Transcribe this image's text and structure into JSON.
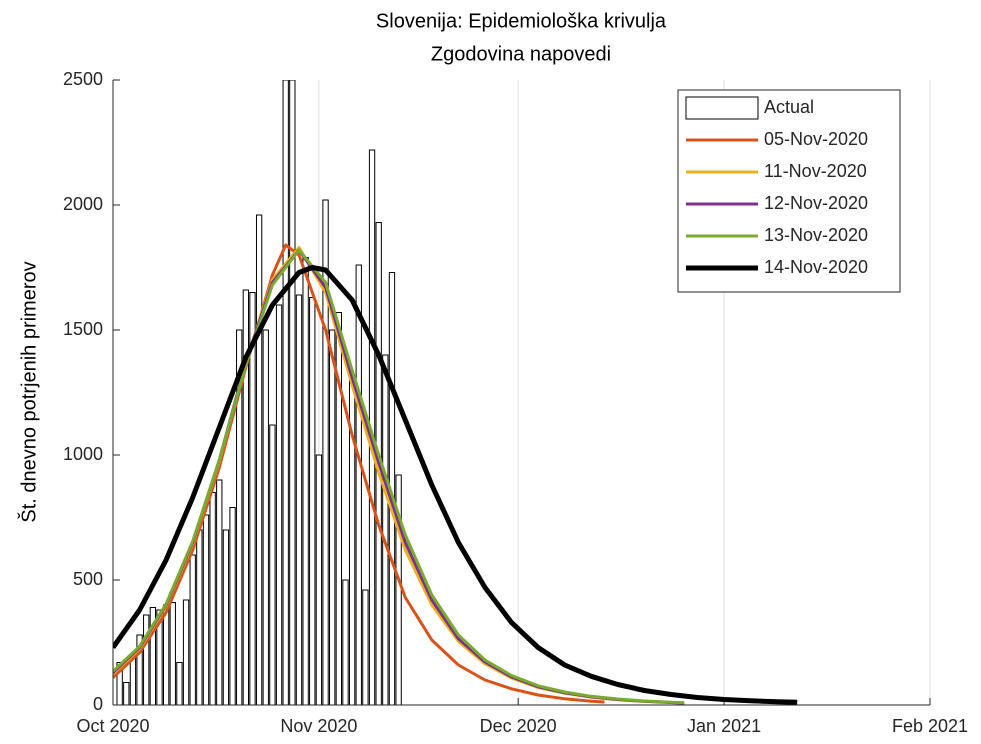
{
  "chart_data": {
    "type": "bar",
    "title": "Slovenija: Epidemiološka krivulja",
    "subtitle": "Zgodovina napovedi",
    "y_label": "Št. dnevno potrjenih primerov",
    "xlim": [
      0,
      123
    ],
    "xticks": [
      {
        "value": 0,
        "label": "Oct 2020"
      },
      {
        "value": 31,
        "label": "Nov 2020"
      },
      {
        "value": 61,
        "label": "Dec 2020"
      },
      {
        "value": 92,
        "label": "Jan 2021"
      },
      {
        "value": 123,
        "label": "Feb 2021"
      }
    ],
    "ylim": [
      0,
      2500
    ],
    "yticks": [
      0,
      500,
      1000,
      1500,
      2000,
      2500
    ],
    "xgrid": true,
    "legend": "northeast",
    "series": [
      {
        "name": "Actual",
        "type": "bar",
        "color": "#ffffff",
        "x": [
          1,
          2,
          3,
          4,
          5,
          6,
          7,
          8,
          9,
          10,
          11,
          12,
          13,
          14,
          15,
          16,
          17,
          18,
          19,
          20,
          21,
          22,
          23,
          24,
          25,
          26,
          27,
          28,
          29,
          30,
          31,
          32,
          33,
          34,
          35,
          36,
          37,
          38,
          39,
          40,
          41,
          42,
          43
        ],
        "values": [
          170,
          90,
          190,
          280,
          360,
          390,
          380,
          400,
          410,
          170,
          420,
          600,
          700,
          760,
          850,
          900,
          700,
          790,
          1500,
          1660,
          1650,
          1960,
          1500,
          1120,
          1600,
          2500,
          2500,
          1640,
          1790,
          1630,
          1000,
          2020,
          1500,
          1570,
          500,
          1300,
          1760,
          460,
          2220,
          1930,
          1400,
          1730,
          920
        ]
      },
      {
        "name": "05-Nov-2020",
        "type": "line",
        "color": "#d95319",
        "x": [
          0,
          4,
          8,
          12,
          16,
          20,
          24,
          26,
          28,
          32,
          36,
          40,
          44,
          48,
          52,
          56,
          60,
          64,
          68,
          72,
          74
        ],
        "values": [
          110,
          210,
          370,
          620,
          950,
          1350,
          1720,
          1840,
          1800,
          1500,
          1080,
          720,
          430,
          260,
          160,
          100,
          65,
          40,
          25,
          15,
          12
        ]
      },
      {
        "name": "11-Nov-2020",
        "type": "line",
        "color": "#edb120",
        "x": [
          0,
          4,
          8,
          12,
          16,
          20,
          24,
          28,
          32,
          36,
          40,
          44,
          48,
          52,
          56,
          60,
          64,
          68,
          72,
          76,
          80,
          84,
          86
        ],
        "values": [
          125,
          225,
          395,
          645,
          975,
          1370,
          1700,
          1830,
          1650,
          1280,
          930,
          620,
          400,
          255,
          165,
          108,
          70,
          47,
          31,
          21,
          14,
          10,
          8
        ]
      },
      {
        "name": "12-Nov-2020",
        "type": "line",
        "color": "#7e2f8e",
        "x": [
          0,
          4,
          8,
          12,
          16,
          20,
          24,
          28,
          32,
          36,
          40,
          44,
          48,
          52,
          56,
          60,
          64,
          68,
          72,
          76,
          80,
          84,
          86
        ],
        "values": [
          130,
          230,
          400,
          650,
          980,
          1370,
          1690,
          1820,
          1670,
          1310,
          970,
          650,
          420,
          265,
          172,
          112,
          73,
          49,
          33,
          22,
          15,
          10,
          8
        ]
      },
      {
        "name": "13-Nov-2020",
        "type": "line",
        "color": "#77ac30",
        "x": [
          0,
          4,
          8,
          12,
          16,
          20,
          24,
          28,
          32,
          36,
          40,
          44,
          48,
          52,
          56,
          60,
          64,
          68,
          72,
          76,
          80,
          84,
          86
        ],
        "values": [
          135,
          235,
          405,
          655,
          980,
          1360,
          1680,
          1820,
          1690,
          1340,
          1000,
          680,
          440,
          280,
          180,
          118,
          77,
          52,
          35,
          24,
          16,
          11,
          9
        ]
      },
      {
        "name": "14-Nov-2020",
        "type": "line",
        "color": "#000000",
        "x": [
          0,
          4,
          8,
          12,
          16,
          20,
          24,
          28,
          30,
          32,
          36,
          40,
          44,
          48,
          52,
          56,
          60,
          64,
          68,
          72,
          76,
          80,
          84,
          88,
          92,
          96,
          100,
          103
        ],
        "values": [
          230,
          380,
          580,
          830,
          1110,
          1390,
          1600,
          1730,
          1750,
          1740,
          1620,
          1400,
          1140,
          880,
          650,
          470,
          330,
          230,
          160,
          115,
          82,
          58,
          42,
          30,
          22,
          17,
          13,
          11
        ]
      }
    ]
  }
}
